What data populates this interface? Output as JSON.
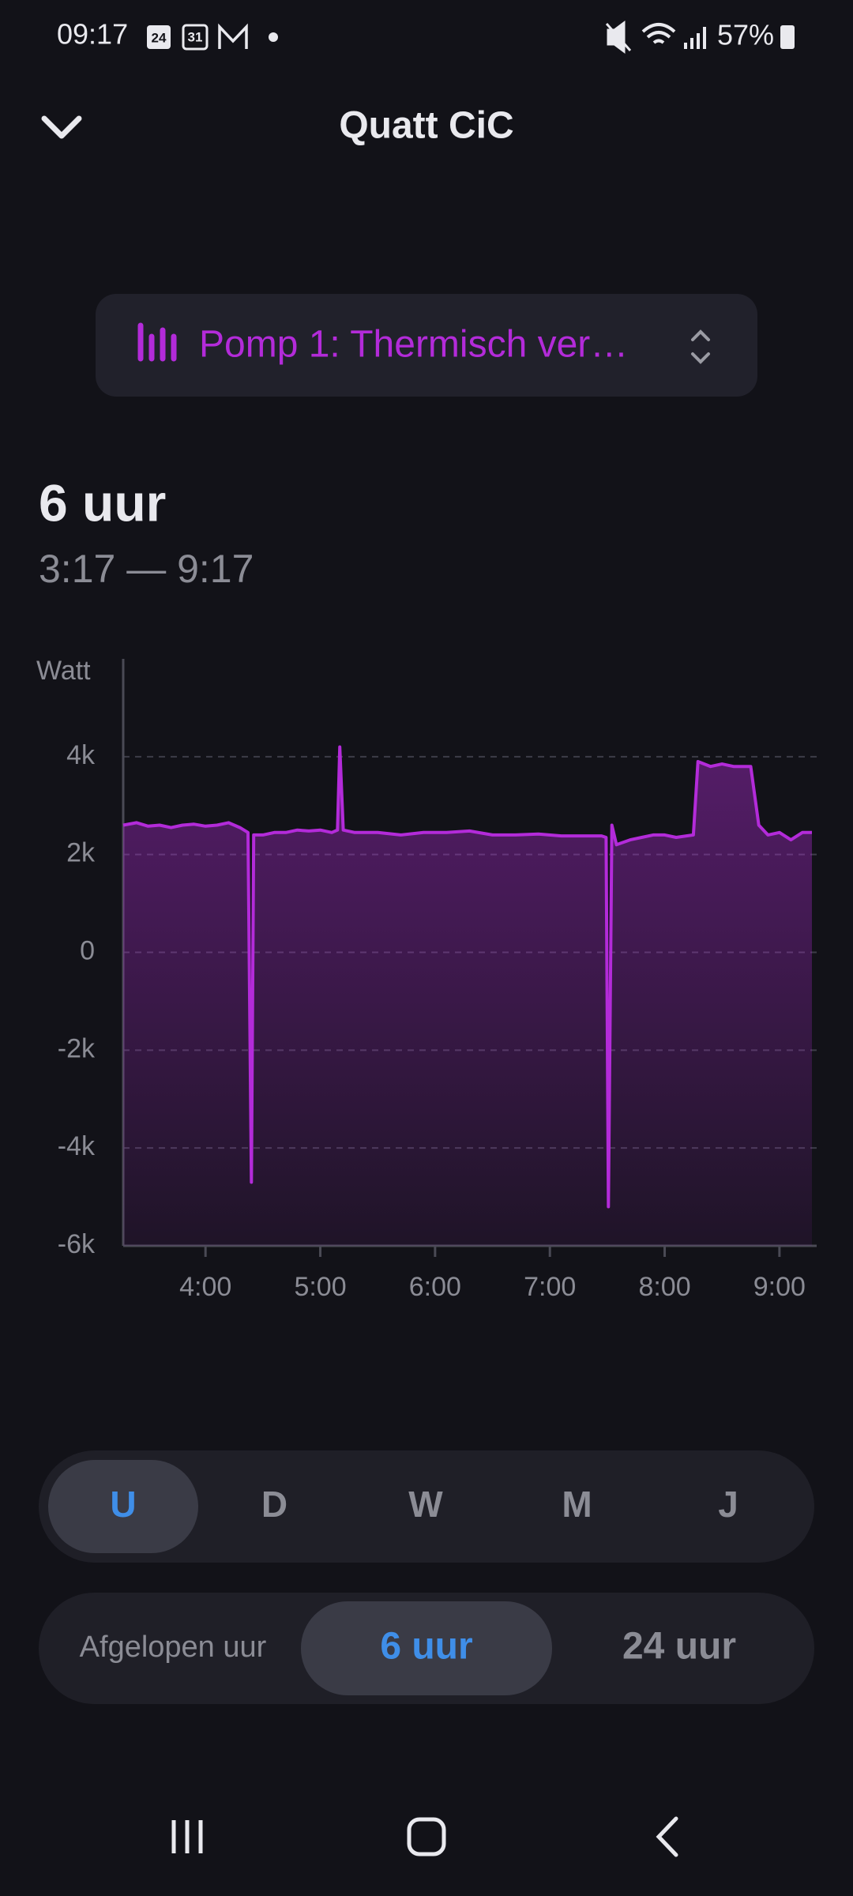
{
  "status_bar": {
    "time": "09:17",
    "calendar_day": "24",
    "calendar_date": "31",
    "battery": "57%"
  },
  "header": {
    "title": "Quatt CiC"
  },
  "selector": {
    "label": "Pomp 1: Thermisch ver…"
  },
  "summary": {
    "duration": "6 uur",
    "range": "3:17 — 9:17"
  },
  "chart_data": {
    "type": "line",
    "y_label": "Watt",
    "x": [
      3.283,
      3.4,
      3.5,
      3.6,
      3.7,
      3.8,
      3.9,
      4.0,
      4.1,
      4.2,
      4.3,
      4.37,
      4.4,
      4.42,
      4.5,
      4.6,
      4.7,
      4.8,
      4.9,
      5.0,
      5.1,
      5.15,
      5.17,
      5.2,
      5.3,
      5.5,
      5.7,
      5.9,
      6.1,
      6.3,
      6.5,
      6.7,
      6.9,
      7.1,
      7.3,
      7.45,
      7.49,
      7.51,
      7.54,
      7.58,
      7.7,
      7.8,
      7.9,
      8.0,
      8.1,
      8.25,
      8.29,
      8.4,
      8.5,
      8.6,
      8.75,
      8.82,
      8.9,
      9.0,
      9.1,
      9.2,
      9.283
    ],
    "series": [
      {
        "color": "#b32bd9",
        "values": [
          2600,
          2650,
          2580,
          2600,
          2550,
          2600,
          2620,
          2580,
          2600,
          2650,
          2550,
          2450,
          -4700,
          2400,
          2400,
          2450,
          2450,
          2500,
          2480,
          2500,
          2450,
          2500,
          4200,
          2500,
          2450,
          2450,
          2400,
          2450,
          2450,
          2480,
          2400,
          2400,
          2420,
          2380,
          2380,
          2380,
          2350,
          -5200,
          2600,
          2200,
          2300,
          2350,
          2400,
          2400,
          2350,
          2400,
          3900,
          3800,
          3850,
          3800,
          3800,
          2600,
          2400,
          2450,
          2300,
          2450,
          2450
        ]
      }
    ],
    "xlim": [
      3.283,
      9.283
    ],
    "xticks": [
      {
        "value": 4,
        "label": "4:00"
      },
      {
        "value": 5,
        "label": "5:00"
      },
      {
        "value": 6,
        "label": "6:00"
      },
      {
        "value": 7,
        "label": "7:00"
      },
      {
        "value": 8,
        "label": "8:00"
      },
      {
        "value": 9,
        "label": "9:00"
      }
    ],
    "ylim": [
      -6000,
      6000
    ],
    "yticks": [
      {
        "value": -6000,
        "label": "-6k"
      },
      {
        "value": -4000,
        "label": "-4k"
      },
      {
        "value": -2000,
        "label": "-2k"
      },
      0,
      {
        "value": 2000,
        "label": "2k"
      },
      {
        "value": 4000,
        "label": "4k"
      }
    ],
    "grid": true
  },
  "period_tabs": {
    "options": [
      "U",
      "D",
      "W",
      "M",
      "J"
    ],
    "selected": 0
  },
  "range_tabs": {
    "options": [
      "Afgelopen uur",
      "6 uur",
      "24 uur"
    ],
    "selected": 1
  }
}
